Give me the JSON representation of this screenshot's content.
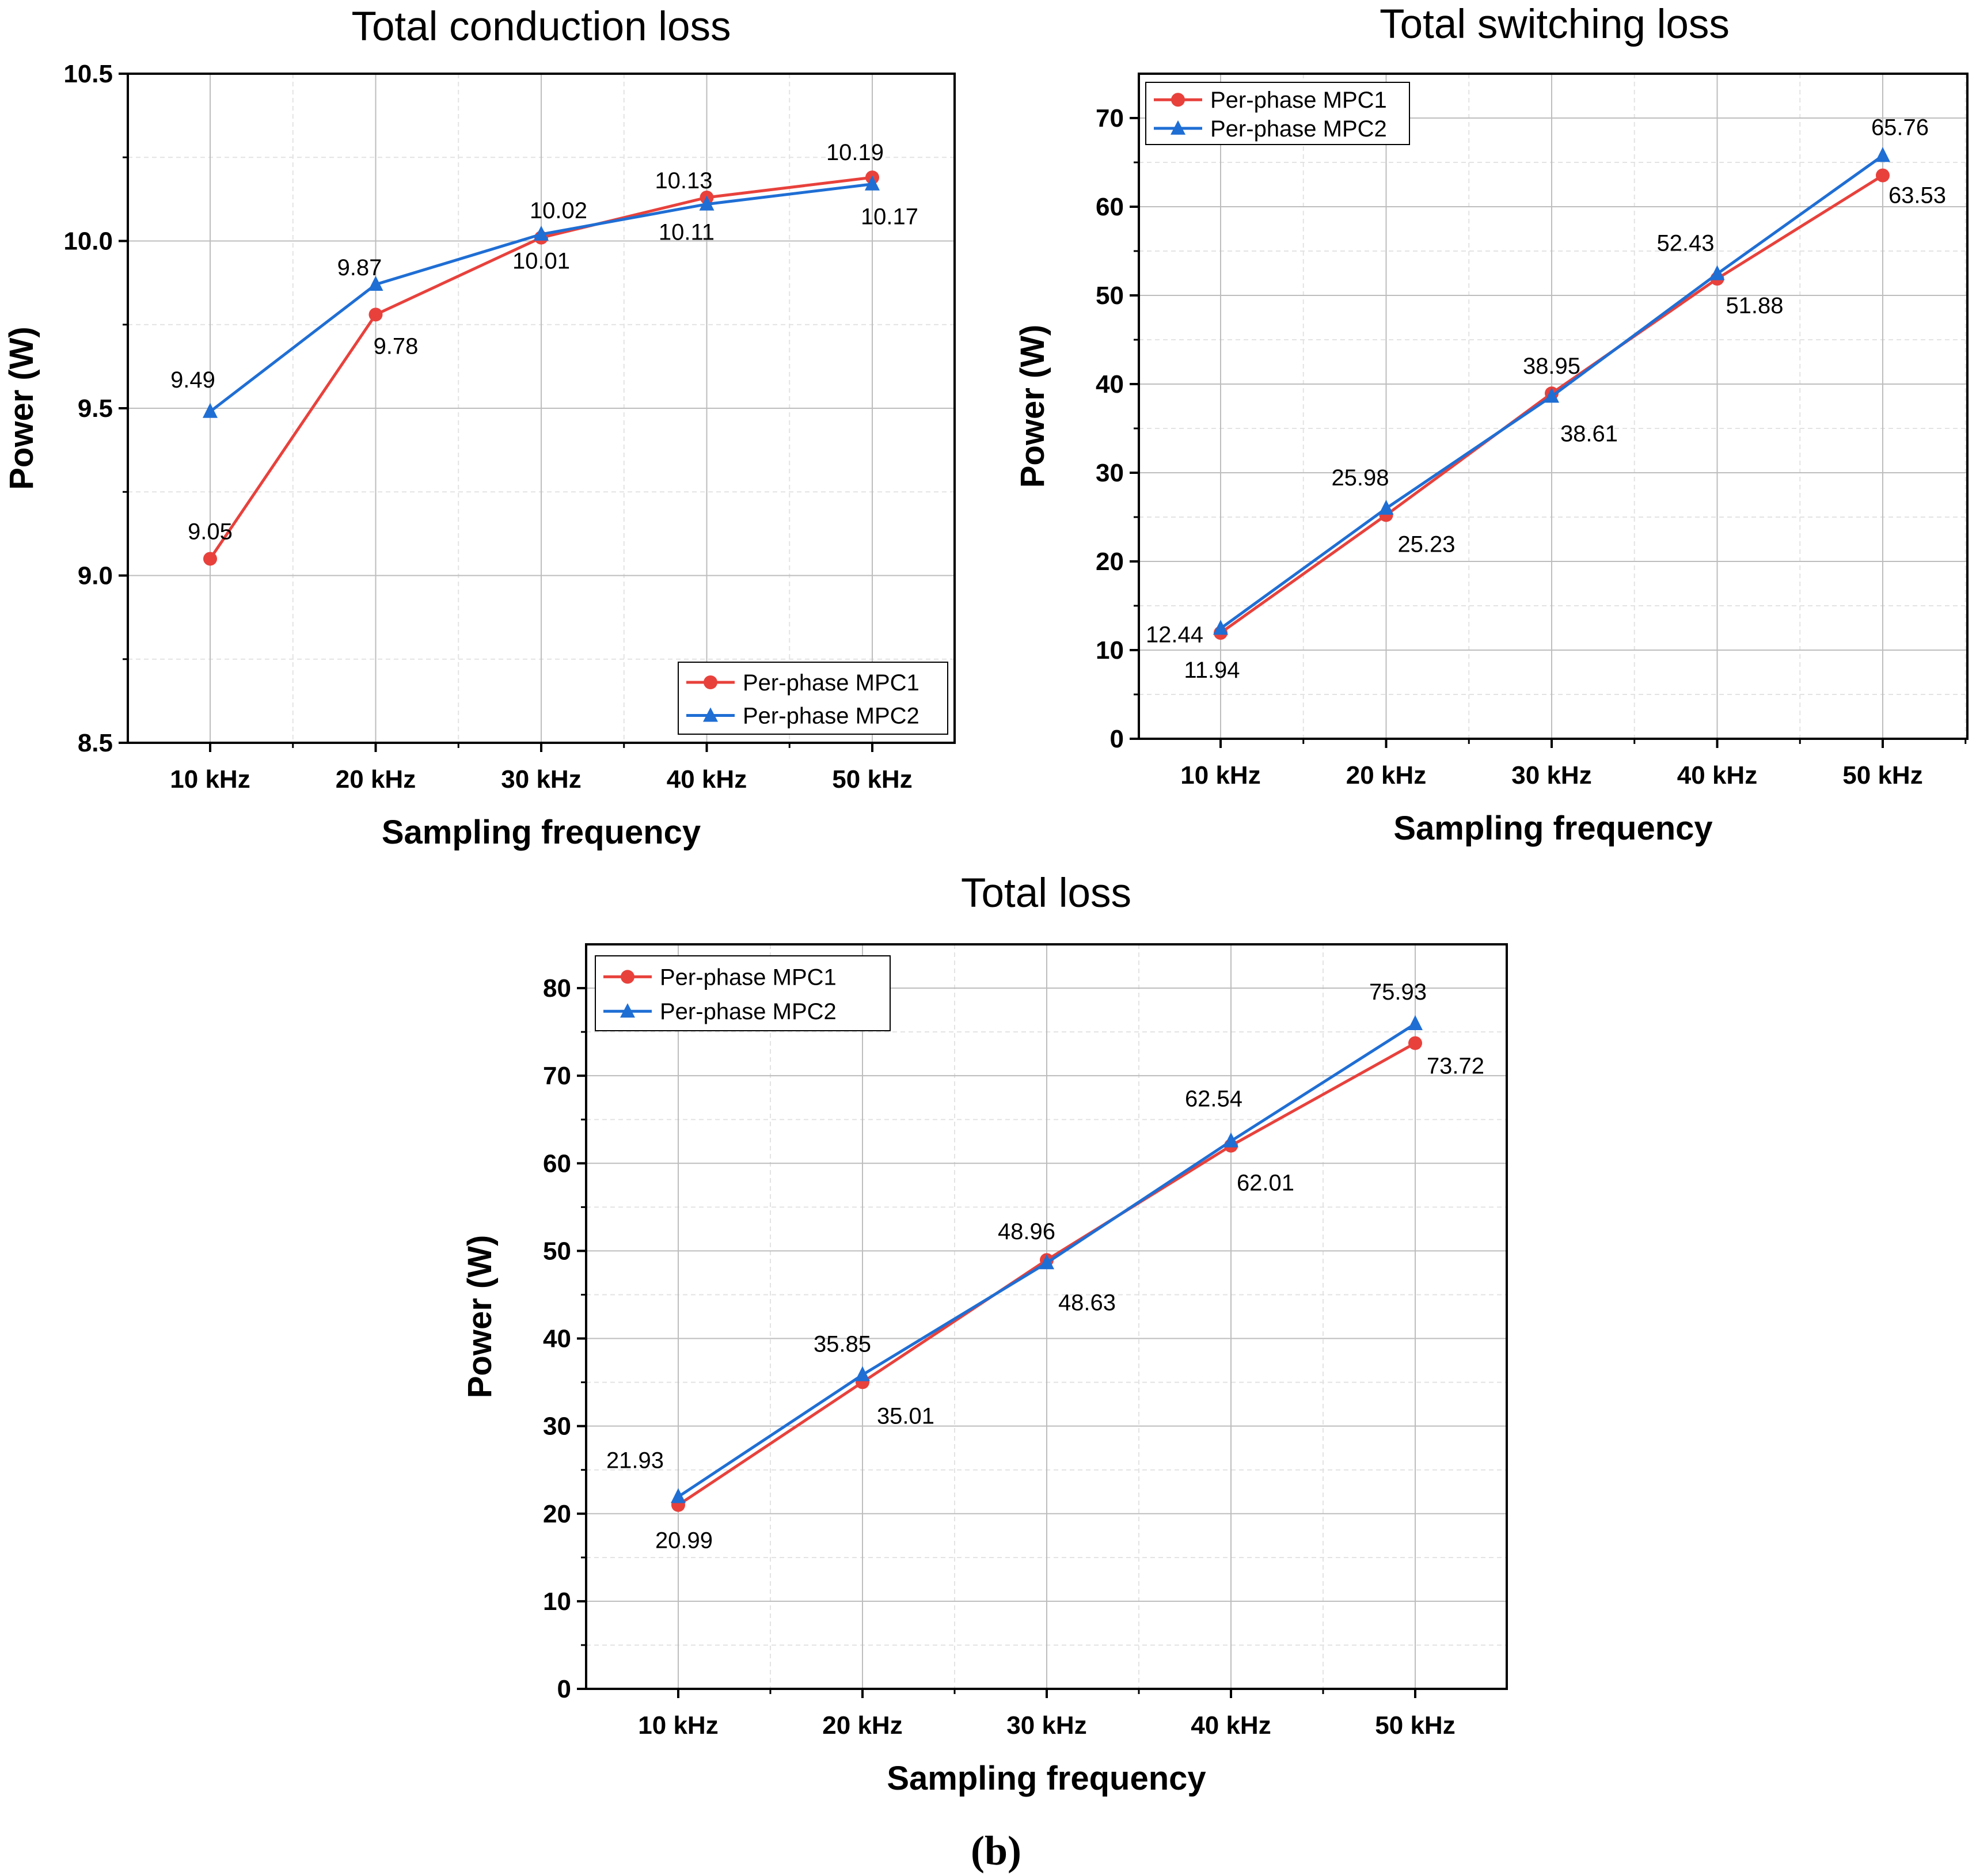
{
  "caption": "(b)",
  "chart_data": [
    {
      "type": "line",
      "title": "Total conduction loss",
      "xlabel": "Sampling frequency",
      "ylabel": "Power (W)",
      "categories": [
        "10 kHz",
        "20 kHz",
        "30 kHz",
        "40 kHz",
        "50 kHz"
      ],
      "ylim": [
        8.5,
        10.5
      ],
      "yticks": [
        "8.5",
        "9.0",
        "9.5",
        "10.0",
        "10.5"
      ],
      "legend_position": "bottom-right",
      "series": [
        {
          "name": "Per-phase MPC1",
          "color": "#e8413c",
          "marker": "circle",
          "values": [
            9.05,
            9.78,
            10.01,
            10.13,
            10.19
          ],
          "labels": [
            "9.05",
            "9.78",
            "10.01",
            "10.13",
            "10.19"
          ]
        },
        {
          "name": "Per-phase MPC2",
          "color": "#1f6ed4",
          "marker": "triangle",
          "values": [
            9.49,
            9.87,
            10.02,
            10.11,
            10.17
          ],
          "labels": [
            "9.49",
            "9.87",
            "10.02",
            "10.11",
            "10.17"
          ]
        }
      ]
    },
    {
      "type": "line",
      "title": "Total switching loss",
      "xlabel": "Sampling frequency",
      "ylabel": "Power (W)",
      "categories": [
        "10 kHz",
        "20 kHz",
        "30 kHz",
        "40 kHz",
        "50 kHz"
      ],
      "ylim": [
        0,
        75
      ],
      "yticks": [
        "0",
        "10",
        "20",
        "30",
        "40",
        "50",
        "60",
        "70"
      ],
      "legend_position": "top-left",
      "series": [
        {
          "name": "Per-phase MPC1",
          "color": "#e8413c",
          "marker": "circle",
          "values": [
            11.94,
            25.23,
            38.95,
            51.88,
            63.53
          ],
          "labels": [
            "11.94",
            "25.23",
            "38.95",
            "51.88",
            "63.53"
          ]
        },
        {
          "name": "Per-phase MPC2",
          "color": "#1f6ed4",
          "marker": "triangle",
          "values": [
            12.44,
            25.98,
            38.61,
            52.43,
            65.76
          ],
          "labels": [
            "12.44",
            "25.98",
            "38.61",
            "52.43",
            "65.76"
          ]
        }
      ]
    },
    {
      "type": "line",
      "title": "Total loss",
      "xlabel": "Sampling frequency",
      "ylabel": "Power (W)",
      "categories": [
        "10 kHz",
        "20 kHz",
        "30 kHz",
        "40 kHz",
        "50 kHz"
      ],
      "ylim": [
        0,
        85
      ],
      "yticks": [
        "0",
        "10",
        "20",
        "30",
        "40",
        "50",
        "60",
        "70",
        "80"
      ],
      "legend_position": "top-left",
      "series": [
        {
          "name": "Per-phase MPC1",
          "color": "#e8413c",
          "marker": "circle",
          "values": [
            20.99,
            35.01,
            48.96,
            62.01,
            73.72
          ],
          "labels": [
            "20.99",
            "35.01",
            "48.96",
            "62.01",
            "73.72"
          ]
        },
        {
          "name": "Per-phase MPC2",
          "color": "#1f6ed4",
          "marker": "triangle",
          "values": [
            21.93,
            35.85,
            48.63,
            62.54,
            75.93
          ],
          "labels": [
            "21.93",
            "35.85",
            "48.63",
            "62.54",
            "75.93"
          ]
        }
      ]
    }
  ]
}
